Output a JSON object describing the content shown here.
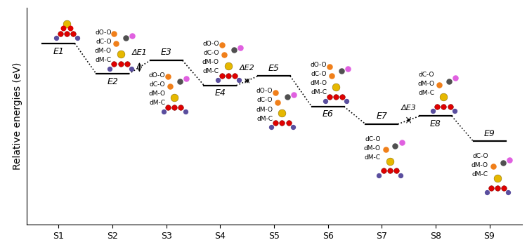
{
  "chart_data": {
    "type": "energy_profile",
    "y_label": "Relative energies (eV)",
    "categories": [
      "S1",
      "S2",
      "S3",
      "S4",
      "S5",
      "S6",
      "S7",
      "S8",
      "S9"
    ],
    "level_labels": [
      "E1",
      "E2",
      "E3",
      "E4",
      "E5",
      "E6",
      "E7",
      "E8",
      "E9"
    ],
    "values": [
      8.34,
      6.94,
      7.56,
      6.41,
      6.84,
      5.44,
      4.63,
      5.0,
      3.84
    ],
    "ylim": [
      0,
      10
    ],
    "yticks": [],
    "tick_labels": "x",
    "annotations": [
      {
        "text": "ΔE1",
        "from": "S2",
        "to": "S3"
      },
      {
        "text": "ΔE2",
        "from": "S4",
        "to": "S5"
      },
      {
        "text": "ΔE3",
        "from": "S7",
        "to": "S8"
      }
    ],
    "structures": [
      {
        "state": "S1",
        "labels": []
      },
      {
        "state": "S2",
        "labels": [
          "dO-O",
          "dC-O",
          "dM-O",
          "dM-C"
        ]
      },
      {
        "state": "S3",
        "labels": [
          "dO-O",
          "dC-O",
          "dM-O",
          "dM-C"
        ]
      },
      {
        "state": "S4",
        "labels": [
          "dO-O",
          "dC-O",
          "dM-O",
          "dM-C"
        ]
      },
      {
        "state": "S5",
        "labels": [
          "dO-O",
          "dC-O",
          "dM-O",
          "dM-C"
        ]
      },
      {
        "state": "S6",
        "labels": [
          "dO-O",
          "dC-O",
          "dM-O",
          "dM-C"
        ]
      },
      {
        "state": "S7",
        "labels": [
          "dC-O",
          "dM-O",
          "dM-C"
        ]
      },
      {
        "state": "S8",
        "labels": [
          "dC-O",
          "dM-O",
          "dM-C"
        ]
      },
      {
        "state": "S9",
        "labels": [
          "dC-O",
          "dM-O",
          "dM-C"
        ]
      }
    ]
  }
}
